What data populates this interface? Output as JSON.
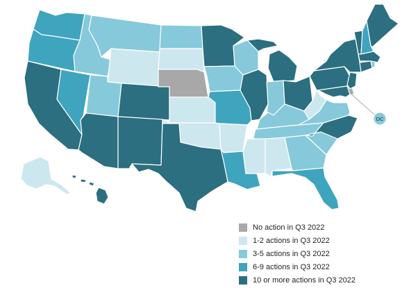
{
  "colors": {
    "none": "#a8a8a8",
    "c12": "#cde7ef",
    "c35": "#86c9da",
    "c69": "#3fa4bd",
    "c10": "#2b6f80"
  },
  "legend": [
    {
      "key": "none",
      "label": "No action in Q3 2022"
    },
    {
      "key": "c12",
      "label": "1-2 actions in Q3 2022"
    },
    {
      "key": "c35",
      "label": "3-5 actions in Q3 2022"
    },
    {
      "key": "c69",
      "label": "6-9 actions in Q3 2022"
    },
    {
      "key": "c10",
      "label": "10 or more actions in Q3 2022"
    }
  ],
  "dc_label": "DC",
  "states": [
    {
      "id": "WA",
      "cat": "c69"
    },
    {
      "id": "OR",
      "cat": "c69"
    },
    {
      "id": "CA",
      "cat": "c10"
    },
    {
      "id": "NV",
      "cat": "c69"
    },
    {
      "id": "ID",
      "cat": "c35"
    },
    {
      "id": "MT",
      "cat": "c35"
    },
    {
      "id": "WY",
      "cat": "c12"
    },
    {
      "id": "UT",
      "cat": "c35"
    },
    {
      "id": "AZ",
      "cat": "c10"
    },
    {
      "id": "CO",
      "cat": "c10"
    },
    {
      "id": "NM",
      "cat": "c10"
    },
    {
      "id": "ND",
      "cat": "c35"
    },
    {
      "id": "SD",
      "cat": "c12"
    },
    {
      "id": "NE",
      "cat": "none"
    },
    {
      "id": "KS",
      "cat": "c12"
    },
    {
      "id": "OK",
      "cat": "c12"
    },
    {
      "id": "TX",
      "cat": "c10"
    },
    {
      "id": "MN",
      "cat": "c10"
    },
    {
      "id": "IA",
      "cat": "c35"
    },
    {
      "id": "MO",
      "cat": "c69"
    },
    {
      "id": "AR",
      "cat": "c12"
    },
    {
      "id": "LA",
      "cat": "c69"
    },
    {
      "id": "WI",
      "cat": "c35"
    },
    {
      "id": "IL",
      "cat": "c10"
    },
    {
      "id": "MI",
      "cat": "c10"
    },
    {
      "id": "IN",
      "cat": "c35"
    },
    {
      "id": "OH",
      "cat": "c10"
    },
    {
      "id": "KY",
      "cat": "c35"
    },
    {
      "id": "TN",
      "cat": "c35"
    },
    {
      "id": "MS",
      "cat": "c12"
    },
    {
      "id": "AL",
      "cat": "c12"
    },
    {
      "id": "GA",
      "cat": "c35"
    },
    {
      "id": "FL",
      "cat": "c69"
    },
    {
      "id": "SC",
      "cat": "c35"
    },
    {
      "id": "NC",
      "cat": "c10"
    },
    {
      "id": "VA",
      "cat": "c35"
    },
    {
      "id": "WV",
      "cat": "c12"
    },
    {
      "id": "PA",
      "cat": "c10"
    },
    {
      "id": "NY",
      "cat": "c10"
    },
    {
      "id": "VT",
      "cat": "c10"
    },
    {
      "id": "NH",
      "cat": "c69"
    },
    {
      "id": "ME",
      "cat": "c10"
    },
    {
      "id": "MA",
      "cat": "c10"
    },
    {
      "id": "RI",
      "cat": "c35"
    },
    {
      "id": "CT",
      "cat": "c10"
    },
    {
      "id": "NJ",
      "cat": "c10"
    },
    {
      "id": "DE",
      "cat": "none"
    },
    {
      "id": "MD",
      "cat": "c10"
    },
    {
      "id": "DC",
      "cat": "c35"
    },
    {
      "id": "AK",
      "cat": "c12"
    },
    {
      "id": "HI",
      "cat": "c10"
    }
  ]
}
